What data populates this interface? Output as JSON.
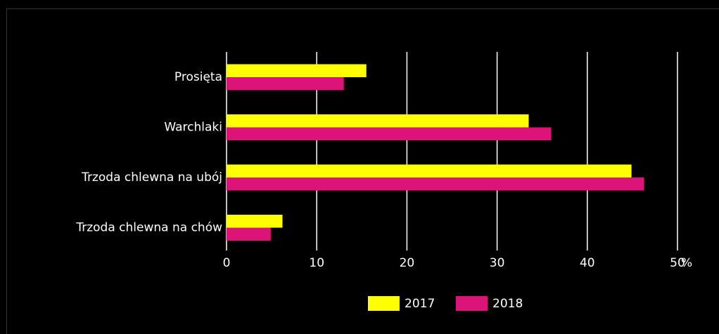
{
  "chart_data": {
    "type": "bar",
    "orientation": "horizontal",
    "categories": [
      "Prosięta",
      "Warchlaki",
      "Trzoda chlewna na ubój",
      "Trzoda chlewna na chów"
    ],
    "series": [
      {
        "name": "2017",
        "color": "#ffff00",
        "values": [
          15.5,
          33.5,
          44.9,
          6.2
        ]
      },
      {
        "name": "2018",
        "color": "#dc1478",
        "values": [
          13.0,
          36.0,
          46.3,
          4.9
        ]
      }
    ],
    "xlim": [
      0,
      50
    ],
    "xticks": [
      0,
      10,
      20,
      30,
      40,
      50
    ],
    "x_unit": "%",
    "grid": true,
    "legend": "bottom"
  }
}
